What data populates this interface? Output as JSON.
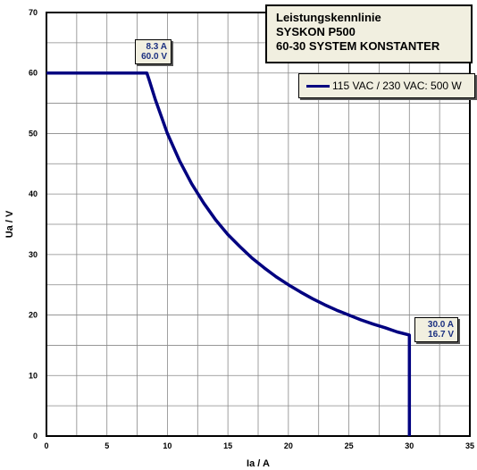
{
  "chart_data": {
    "type": "line",
    "title": [
      "Leistungskennlinie",
      "SYSKON P500",
      "60-30 SYSTEM KONSTANTER"
    ],
    "xlabel": "Ia / A",
    "ylabel": "Ua / V",
    "xlim": [
      0,
      35
    ],
    "ylim": [
      0,
      70
    ],
    "x_ticks": [
      0,
      5,
      10,
      15,
      20,
      25,
      30,
      35
    ],
    "y_ticks": [
      0,
      10,
      20,
      30,
      40,
      50,
      60,
      70
    ],
    "minor_y_step": 5,
    "grid": true,
    "legend_position": "top-right",
    "series": [
      {
        "name": "115 VAC / 230 VAC: 500 W",
        "color": "#000080",
        "x": [
          0,
          8.3,
          8.5,
          9,
          10,
          11,
          12,
          13,
          14,
          15,
          16,
          17,
          18,
          19,
          20,
          21,
          22,
          23,
          24,
          25,
          26,
          27,
          28,
          29,
          30,
          30
        ],
        "y": [
          60,
          60,
          58.8,
          55.6,
          50,
          45.5,
          41.7,
          38.5,
          35.7,
          33.3,
          31.3,
          29.4,
          27.8,
          26.3,
          25,
          23.8,
          22.7,
          21.7,
          20.8,
          20,
          19.2,
          18.5,
          17.9,
          17.2,
          16.7,
          0
        ]
      }
    ],
    "annotations": [
      {
        "x": 8.3,
        "y": 60.0,
        "lines": [
          "8.3 A",
          "60.0 V"
        ]
      },
      {
        "x": 30.0,
        "y": 16.7,
        "lines": [
          "30.0 A",
          "16.7 V"
        ]
      }
    ]
  }
}
